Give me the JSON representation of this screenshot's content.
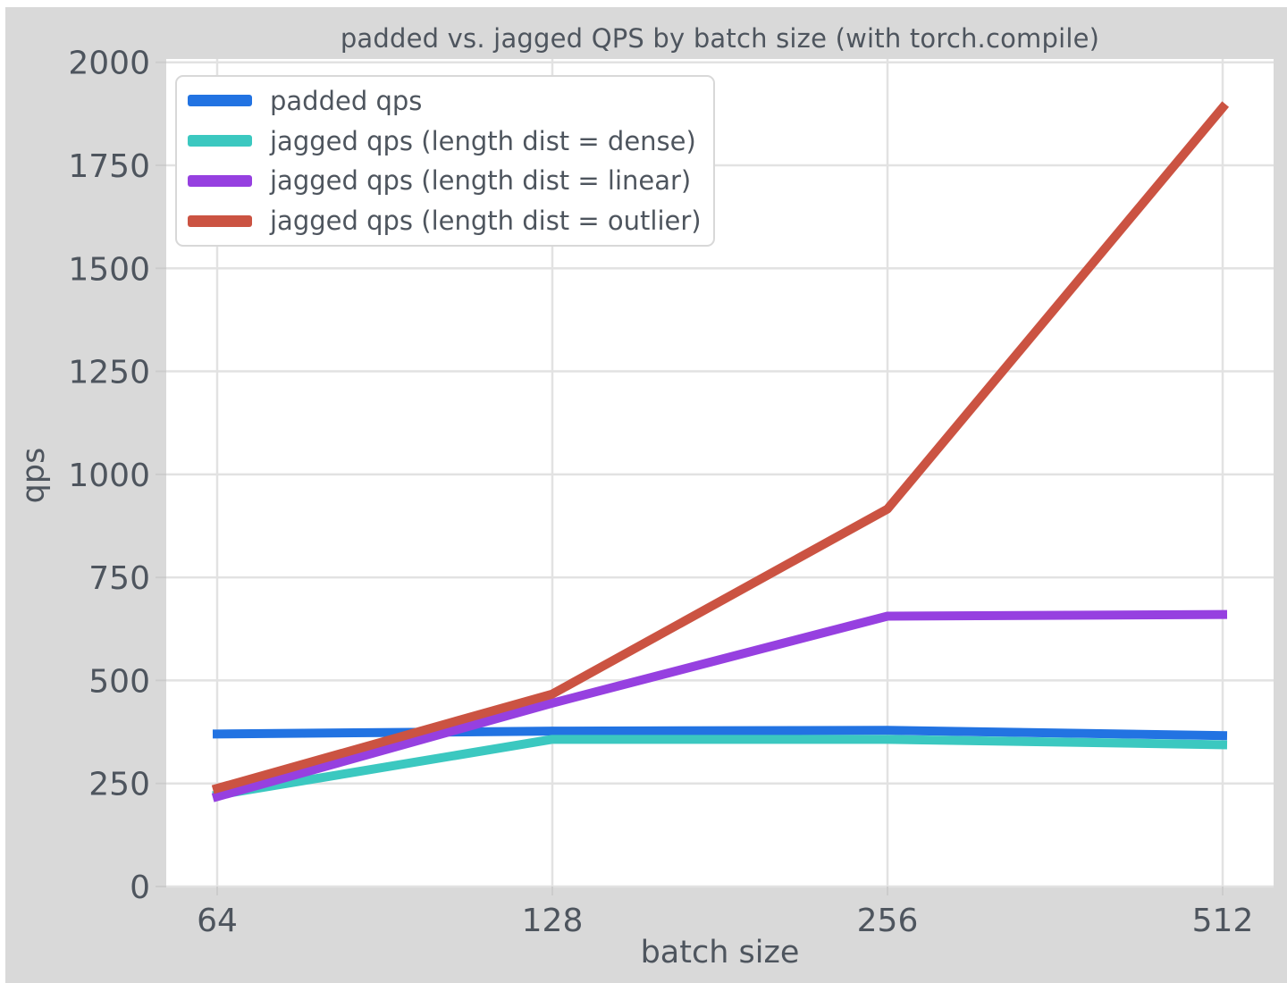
{
  "figure": {
    "background_color": "#d9d9d9",
    "plot_background_color": "#ffffff",
    "grid_color": "#e2e2e2",
    "tick_color": "#cccccc",
    "text_color": "#4e555e",
    "legend_border_color": "#d8d8d8",
    "legend_background_color": "#ffffff"
  },
  "chart_data": {
    "type": "line",
    "title": "padded vs. jagged QPS by batch size (with torch.compile)",
    "xlabel": "batch size",
    "ylabel": "qps",
    "categories": [
      64,
      128,
      256,
      512
    ],
    "x_tick_labels": [
      "64",
      "128",
      "256",
      "512"
    ],
    "y_ticks": [
      0,
      250,
      500,
      750,
      1000,
      1250,
      1500,
      1750,
      2000
    ],
    "y_tick_labels": [
      "0",
      "250",
      "500",
      "750",
      "1000",
      "1250",
      "1500",
      "1750",
      "2000"
    ],
    "ylim": [
      0,
      2008
    ],
    "grid": true,
    "legend_position": "upper-left",
    "series": [
      {
        "name": "padded qps",
        "color": "#2273e2",
        "values": [
          370,
          377,
          379,
          366
        ]
      },
      {
        "name": "jagged qps (length dist = dense)",
        "color": "#3bc8c0",
        "values": [
          222,
          357,
          357,
          344
        ]
      },
      {
        "name": "jagged qps (length dist = linear)",
        "color": "#9640e0",
        "values": [
          218,
          445,
          656,
          660
        ]
      },
      {
        "name": "jagged qps (length dist = outlier)",
        "color": "#cb5342",
        "values": [
          238,
          467,
          916,
          1890
        ]
      }
    ]
  }
}
